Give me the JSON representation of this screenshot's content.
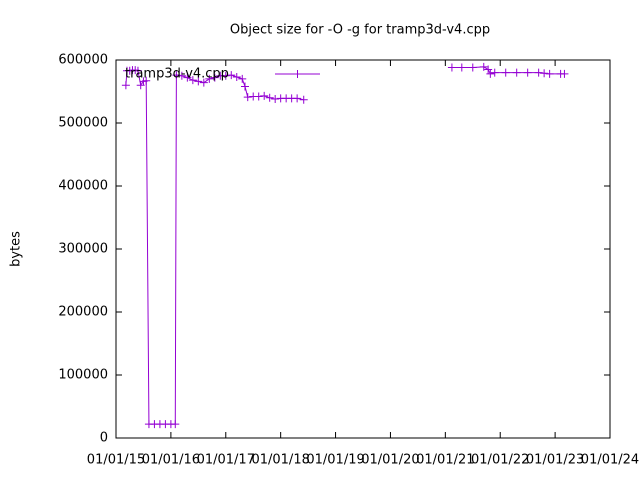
{
  "chart_data": {
    "type": "line",
    "title": "Object size for -O -g for tramp3d-v4.cpp",
    "ylabel": "bytes",
    "x": [
      2015.18,
      2015.2,
      2015.25,
      2015.3,
      2015.35,
      2015.4,
      2015.45,
      2015.5,
      2015.55,
      2015.6,
      2015.7,
      2015.8,
      2015.9,
      2016.0,
      2016.08,
      2016.1,
      2016.2,
      2016.3,
      2016.4,
      2016.5,
      2016.6,
      2016.7,
      2016.8,
      2016.9,
      2017.0,
      2017.1,
      2017.2,
      2017.3,
      2017.35,
      2017.4,
      2017.5,
      2017.6,
      2017.7,
      2017.8,
      2017.9,
      2018.0,
      2018.1,
      2018.2,
      2018.3,
      2018.42,
      2019.5,
      2021.12,
      2021.3,
      2021.5,
      2021.7,
      2021.78,
      2021.82,
      2021.9,
      2022.1,
      2022.3,
      2022.5,
      2022.7,
      2022.8,
      2022.9,
      2023.1,
      2023.17
    ],
    "series": [
      {
        "name": "tramp3d-v4.cpp",
        "color": "#9400d3",
        "values": [
          560000,
          583000,
          583000,
          584000,
          584000,
          583000,
          560000,
          566000,
          567000,
          22000,
          22000,
          22000,
          22000,
          22000,
          22000,
          576000,
          575000,
          572000,
          568000,
          566000,
          564000,
          570000,
          572000,
          575000,
          575000,
          576000,
          573000,
          570000,
          558000,
          541000,
          542000,
          542000,
          543000,
          540000,
          538000,
          539000,
          539000,
          539000,
          539000,
          537000,
          null,
          588000,
          588000,
          588000,
          589000,
          585000,
          578000,
          580000,
          580000,
          580000,
          580000,
          580000,
          579000,
          578000,
          578000,
          578000
        ]
      }
    ],
    "xlim": [
      2015,
      2024
    ],
    "xticks": [
      {
        "value": 2015,
        "label": "01/01/15"
      },
      {
        "value": 2016,
        "label": "01/01/16"
      },
      {
        "value": 2017,
        "label": "01/01/17"
      },
      {
        "value": 2018,
        "label": "01/01/18"
      },
      {
        "value": 2019,
        "label": "01/01/19"
      },
      {
        "value": 2020,
        "label": "01/01/20"
      },
      {
        "value": 2021,
        "label": "01/01/21"
      },
      {
        "value": 2022,
        "label": "01/01/22"
      },
      {
        "value": 2023,
        "label": "01/01/23"
      },
      {
        "value": 2024,
        "label": "01/01/24"
      }
    ],
    "ylim": [
      0,
      600000
    ],
    "yticks": [
      0,
      100000,
      200000,
      300000,
      400000,
      500000,
      600000
    ],
    "legend": "top-left"
  }
}
